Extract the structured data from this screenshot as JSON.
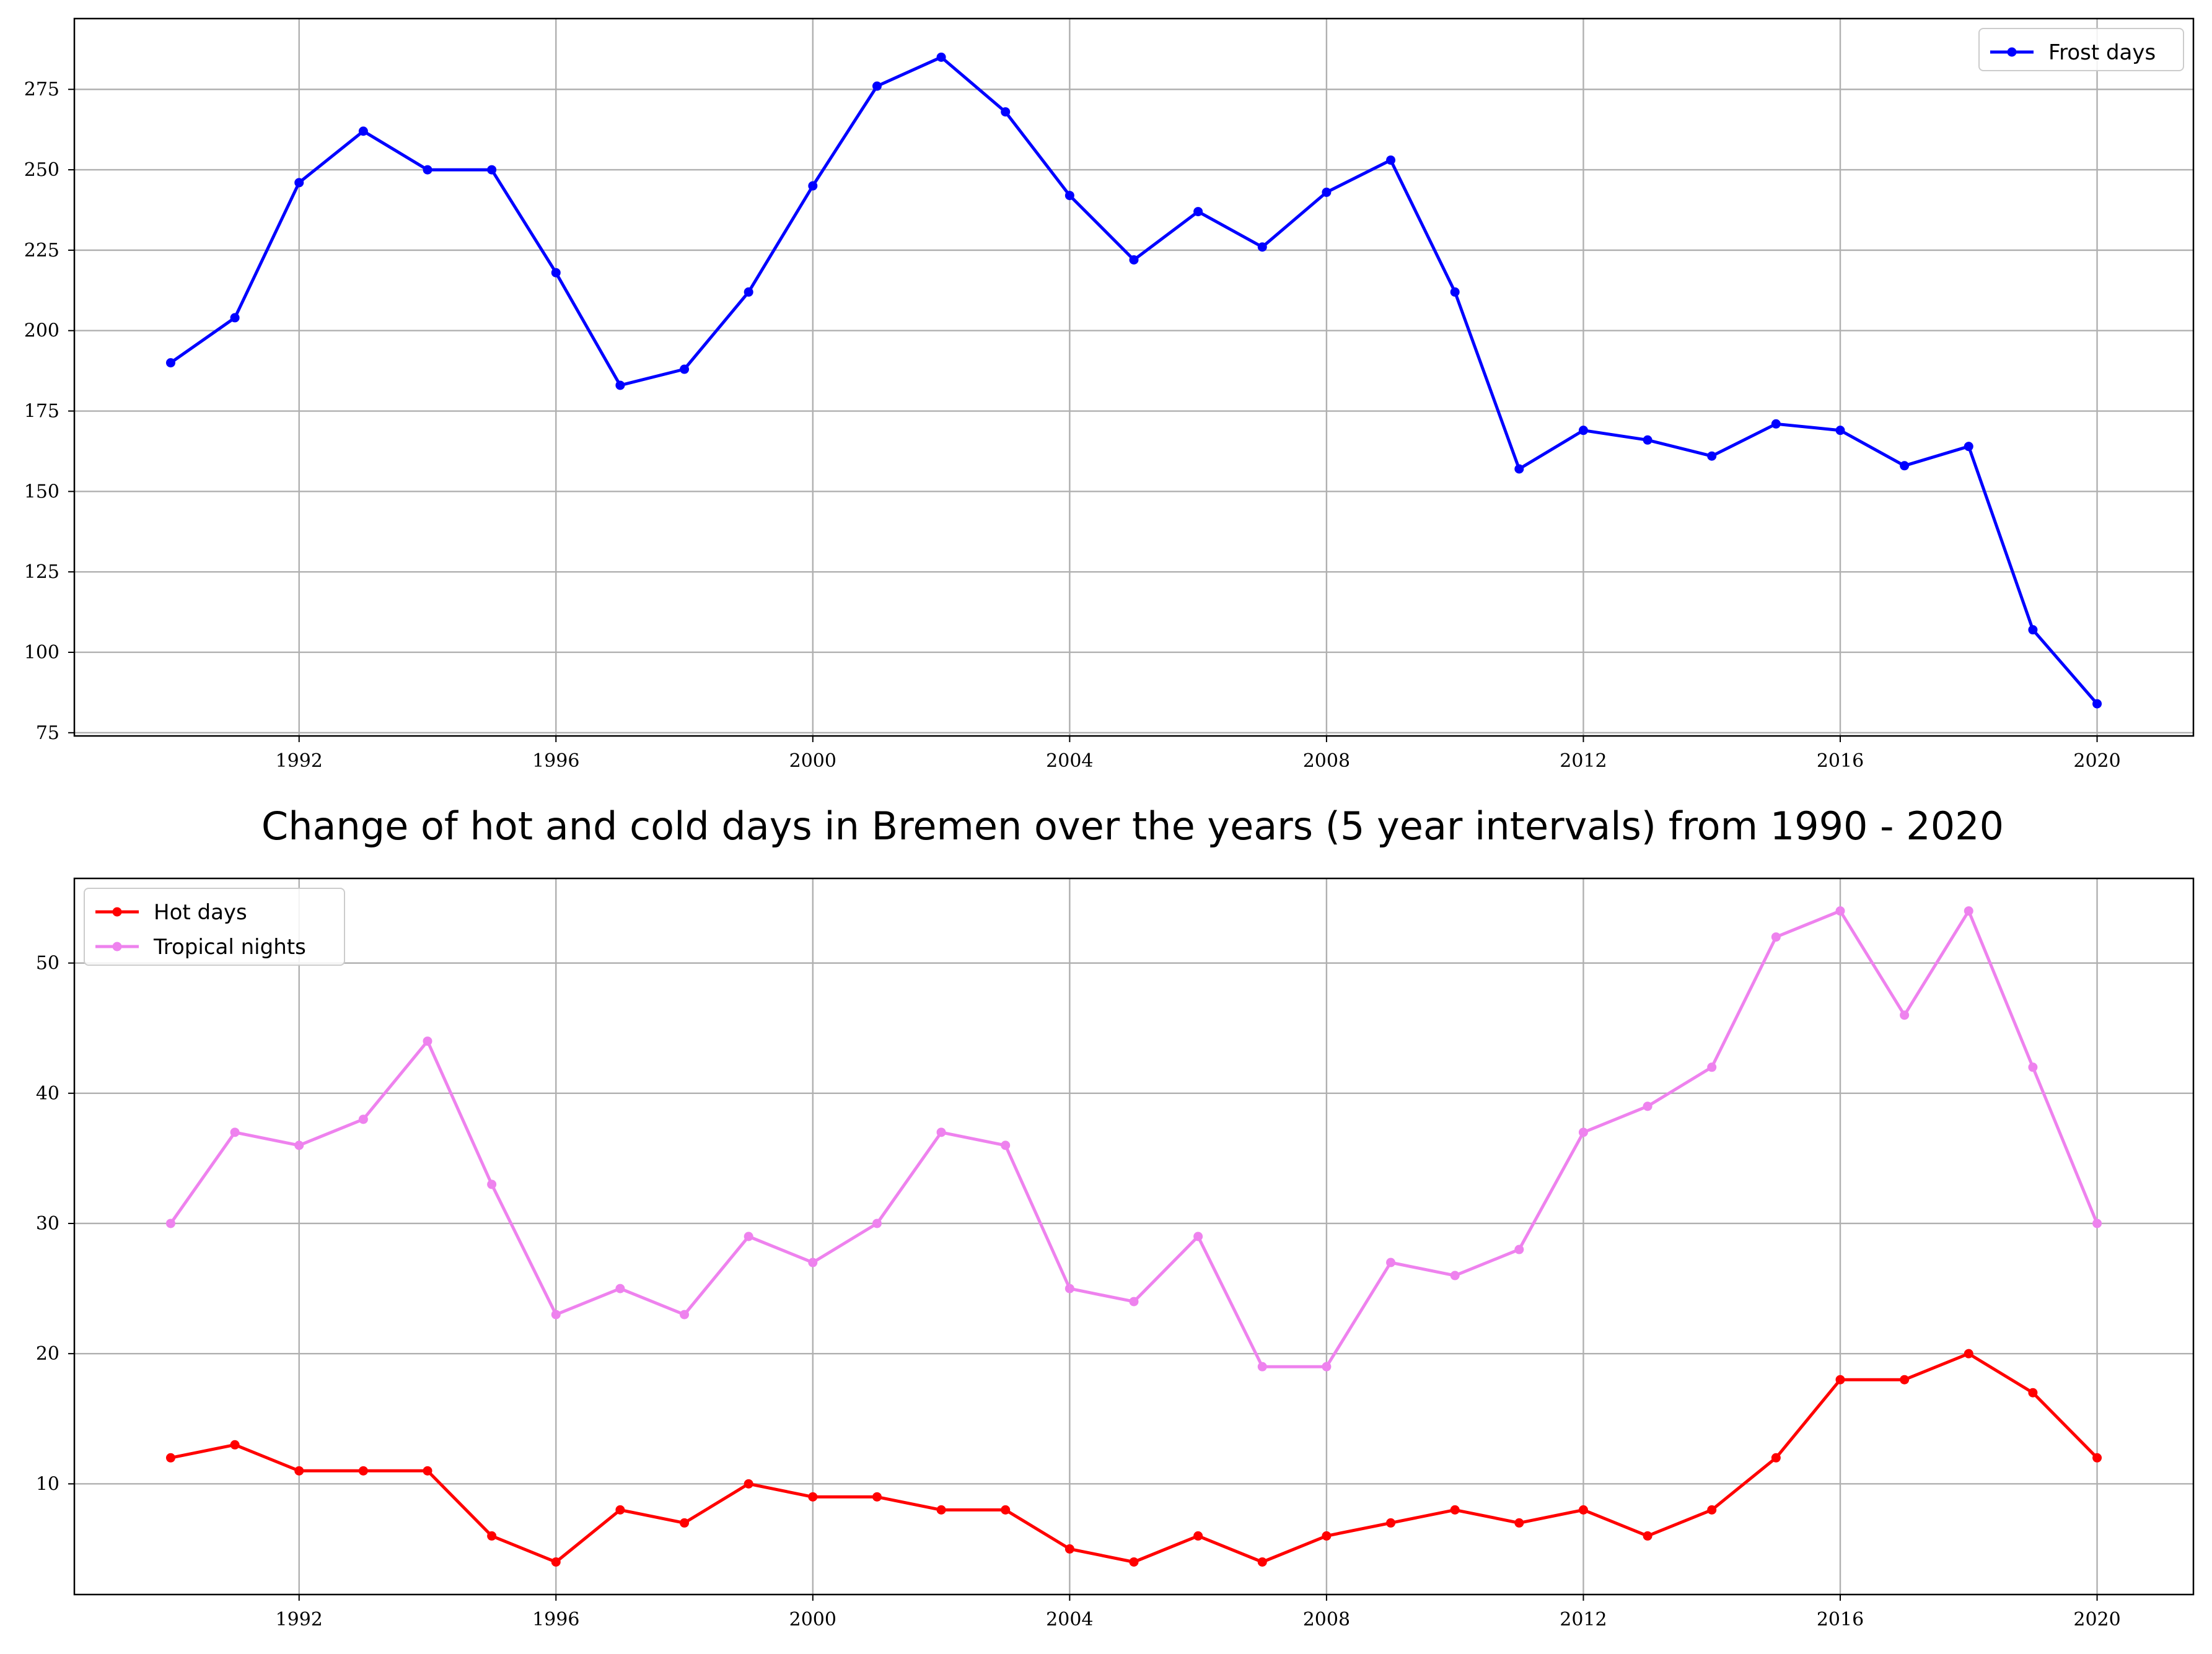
{
  "title": "Change of hot and cold days in Bremen over the years (5 year intervals) from 1990 - 2020",
  "chart_data": [
    {
      "type": "line",
      "xlim": [
        1988.5,
        2021.5
      ],
      "ylim": [
        74,
        297
      ],
      "xticks": [
        1992,
        1996,
        2000,
        2004,
        2008,
        2012,
        2016,
        2020
      ],
      "yticks": [
        75,
        100,
        125,
        150,
        175,
        200,
        225,
        250,
        275
      ],
      "grid": true,
      "legend_position": "top-right",
      "x": [
        1990,
        1991,
        1992,
        1993,
        1994,
        1995,
        1996,
        1997,
        1998,
        1999,
        2000,
        2001,
        2002,
        2003,
        2004,
        2005,
        2006,
        2007,
        2008,
        2009,
        2010,
        2011,
        2012,
        2013,
        2014,
        2015,
        2016,
        2017,
        2018,
        2019,
        2020
      ],
      "series": [
        {
          "name": "Frost days",
          "color": "#0000ff",
          "values": [
            190,
            204,
            246,
            262,
            250,
            250,
            218,
            183,
            188,
            212,
            245,
            276,
            285,
            268,
            242,
            222,
            237,
            226,
            243,
            253,
            212,
            157,
            169,
            166,
            161,
            171,
            169,
            158,
            164,
            107,
            84
          ]
        }
      ]
    },
    {
      "type": "line",
      "xlim": [
        1988.5,
        2021.5
      ],
      "ylim": [
        1.5,
        56.5
      ],
      "xticks": [
        1992,
        1996,
        2000,
        2004,
        2008,
        2012,
        2016,
        2020
      ],
      "yticks": [
        10,
        20,
        30,
        40,
        50
      ],
      "grid": true,
      "legend_position": "top-left",
      "x": [
        1990,
        1991,
        1992,
        1993,
        1994,
        1995,
        1996,
        1997,
        1998,
        1999,
        2000,
        2001,
        2002,
        2003,
        2004,
        2005,
        2006,
        2007,
        2008,
        2009,
        2010,
        2011,
        2012,
        2013,
        2014,
        2015,
        2016,
        2017,
        2018,
        2019,
        2020
      ],
      "series": [
        {
          "name": "Hot days",
          "color": "#ff0000",
          "values": [
            12,
            13,
            11,
            11,
            11,
            6,
            4,
            8,
            7,
            10,
            9,
            9,
            8,
            8,
            5,
            4,
            6,
            4,
            6,
            7,
            8,
            7,
            8,
            6,
            8,
            12,
            18,
            18,
            20,
            17,
            12
          ]
        },
        {
          "name": "Tropical nights",
          "color": "#ee82ee",
          "values": [
            30,
            37,
            36,
            38,
            44,
            33,
            23,
            25,
            23,
            29,
            27,
            30,
            37,
            36,
            25,
            24,
            29,
            19,
            19,
            27,
            26,
            28,
            37,
            39,
            42,
            52,
            54,
            46,
            54,
            42,
            30
          ]
        }
      ]
    }
  ]
}
